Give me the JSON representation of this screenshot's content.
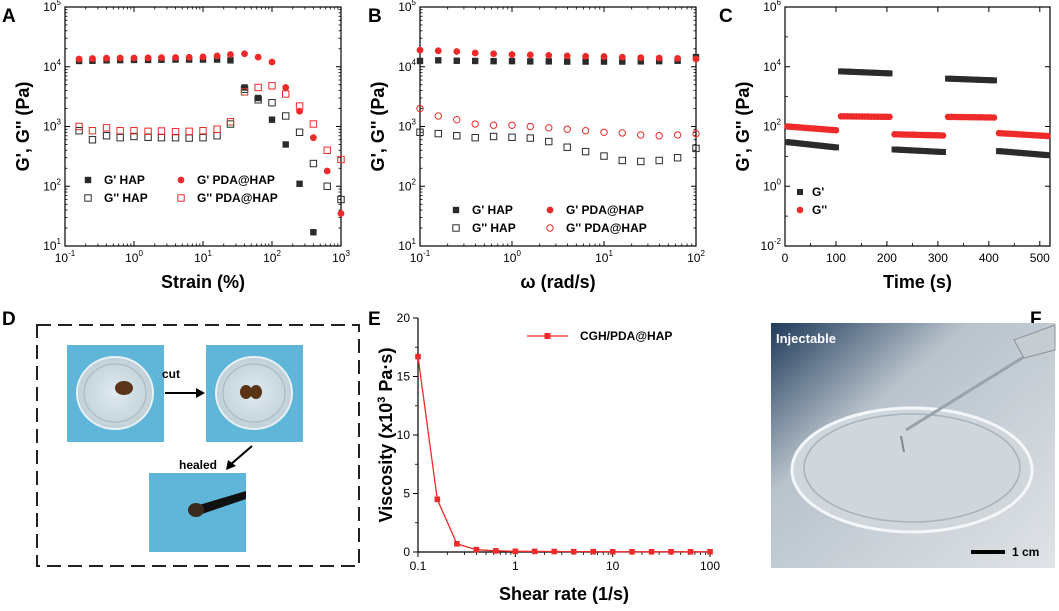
{
  "figure": {
    "panel_labels": [
      "A",
      "B",
      "C",
      "D",
      "E",
      "F"
    ]
  },
  "colors": {
    "hap": "#2b2b2b",
    "pda": "#ee2a2a",
    "photo_bg": "#5fb6d9",
    "dish_bg": "#d8dde2"
  },
  "chart_data": [
    {
      "panel": "A",
      "type": "scatter",
      "xscale": "log",
      "yscale": "log",
      "xlim": [
        0.1,
        1000
      ],
      "ylim": [
        10,
        100000
      ],
      "xlabel": "Strain (%)",
      "ylabel": "G', G'' (Pa)",
      "xticks": [
        {
          "base": "10",
          "exp": "-1"
        },
        {
          "base": "10",
          "exp": "0"
        },
        {
          "base": "10",
          "exp": "1"
        },
        {
          "base": "10",
          "exp": "2"
        },
        {
          "base": "10",
          "exp": "3"
        }
      ],
      "yticks": [
        {
          "base": "10",
          "exp": "1"
        },
        {
          "base": "10",
          "exp": "2"
        },
        {
          "base": "10",
          "exp": "3"
        },
        {
          "base": "10",
          "exp": "4"
        },
        {
          "base": "10",
          "exp": "5"
        }
      ],
      "legend": [
        "G'  HAP",
        "G''  HAP",
        "G'  PDA@HAP",
        "G''  PDA@HAP"
      ],
      "series": [
        {
          "name": "G' HAP",
          "style": "filled-square",
          "color": "hap",
          "x": [
            0.16,
            0.25,
            0.4,
            0.63,
            1,
            1.6,
            2.5,
            4,
            6.3,
            10,
            16,
            25,
            40,
            63,
            100,
            158,
            251,
            398
          ],
          "y": [
            12500,
            12600,
            12800,
            12900,
            13000,
            13000,
            13100,
            13200,
            13200,
            13200,
            13200,
            12800,
            4500,
            3000,
            1300,
            500,
            110,
            17
          ]
        },
        {
          "name": "G'' HAP",
          "style": "open-square",
          "color": "hap",
          "x": [
            0.16,
            0.25,
            0.4,
            0.63,
            1,
            1.6,
            2.5,
            4,
            6.3,
            10,
            16,
            25,
            40,
            63,
            100,
            158,
            251,
            398,
            631,
            1000
          ],
          "y": [
            850,
            600,
            700,
            650,
            680,
            660,
            650,
            650,
            640,
            650,
            700,
            1100,
            4200,
            2800,
            2500,
            1500,
            800,
            240,
            100,
            60
          ]
        },
        {
          "name": "G' PDA@HAP",
          "style": "filled-circle",
          "color": "pda",
          "x": [
            0.16,
            0.25,
            0.4,
            0.63,
            1,
            1.6,
            2.5,
            4,
            6.3,
            10,
            16,
            25,
            40,
            63,
            100,
            158,
            251,
            398,
            631,
            1000
          ],
          "y": [
            13500,
            13700,
            13900,
            14000,
            14000,
            14100,
            14200,
            14300,
            14400,
            14600,
            15200,
            16000,
            16500,
            14500,
            12000,
            4500,
            1800,
            650,
            180,
            35
          ]
        },
        {
          "name": "G'' PDA@HAP",
          "style": "open-square",
          "color": "pda",
          "x": [
            0.16,
            0.25,
            0.4,
            0.63,
            1,
            1.6,
            2.5,
            4,
            6.3,
            10,
            16,
            25,
            40,
            63,
            100,
            158,
            251,
            398,
            631,
            1000
          ],
          "y": [
            1000,
            850,
            950,
            850,
            850,
            830,
            840,
            820,
            830,
            850,
            900,
            1200,
            3800,
            4500,
            4800,
            3500,
            2200,
            1100,
            400,
            280
          ]
        }
      ]
    },
    {
      "panel": "B",
      "type": "scatter",
      "xscale": "log",
      "yscale": "log",
      "xlim": [
        0.1,
        100
      ],
      "ylim": [
        10,
        100000
      ],
      "xlabel": "ω (rad/s)",
      "ylabel": "G', G'' (Pa)",
      "xticks": [
        {
          "base": "10",
          "exp": "-1"
        },
        {
          "base": "10",
          "exp": "0"
        },
        {
          "base": "10",
          "exp": "1"
        },
        {
          "base": "10",
          "exp": "2"
        }
      ],
      "yticks": [
        {
          "base": "10",
          "exp": "1"
        },
        {
          "base": "10",
          "exp": "2"
        },
        {
          "base": "10",
          "exp": "3"
        },
        {
          "base": "10",
          "exp": "4"
        },
        {
          "base": "10",
          "exp": "5"
        }
      ],
      "legend": [
        "G'  HAP",
        "G''  HAP",
        "G'  PDA@HAP",
        "G''  PDA@HAP"
      ],
      "series": [
        {
          "name": "G' HAP",
          "style": "filled-square",
          "color": "hap",
          "x": [
            0.1,
            0.158,
            0.251,
            0.398,
            0.631,
            1,
            1.58,
            2.51,
            3.98,
            6.31,
            10,
            15.8,
            25.1,
            39.8,
            63.1,
            100
          ],
          "y": [
            12500,
            12800,
            12600,
            12500,
            12400,
            12400,
            12300,
            12300,
            12200,
            12200,
            12200,
            12200,
            12300,
            12400,
            12600,
            14500
          ]
        },
        {
          "name": "G'' HAP",
          "style": "open-square",
          "color": "hap",
          "x": [
            0.1,
            0.158,
            0.251,
            0.398,
            0.631,
            1,
            1.58,
            2.51,
            3.98,
            6.31,
            10,
            15.8,
            25.1,
            39.8,
            63.1,
            100
          ],
          "y": [
            800,
            760,
            700,
            650,
            680,
            660,
            640,
            560,
            450,
            380,
            320,
            270,
            260,
            270,
            300,
            430
          ]
        },
        {
          "name": "G' PDA@HAP",
          "style": "filled-circle",
          "color": "pda",
          "x": [
            0.1,
            0.158,
            0.251,
            0.398,
            0.631,
            1,
            1.58,
            2.51,
            3.98,
            6.31,
            10,
            15.8,
            25.1,
            39.8,
            63.1,
            100
          ],
          "y": [
            19000,
            18500,
            18000,
            17000,
            16500,
            16000,
            15800,
            15500,
            15200,
            15000,
            14800,
            14500,
            14200,
            14000,
            13800,
            13500
          ]
        },
        {
          "name": "G'' PDA@HAP",
          "style": "open-circle",
          "color": "pda",
          "x": [
            0.1,
            0.158,
            0.251,
            0.398,
            0.631,
            1,
            1.58,
            2.51,
            3.98,
            6.31,
            10,
            15.8,
            25.1,
            39.8,
            63.1,
            100
          ],
          "y": [
            2000,
            1500,
            1300,
            1100,
            1050,
            1050,
            1000,
            950,
            900,
            850,
            800,
            780,
            720,
            700,
            720,
            760
          ]
        }
      ]
    },
    {
      "panel": "C",
      "type": "scatter",
      "xscale": "linear",
      "yscale": "log",
      "xlim": [
        0,
        520
      ],
      "ylim": [
        0.01,
        1000000
      ],
      "xlabel": "Time (s)",
      "ylabel": "G', G'' (Pa)",
      "xticks": [
        {
          "base": "0",
          "exp": ""
        },
        {
          "base": "100",
          "exp": ""
        },
        {
          "base": "200",
          "exp": ""
        },
        {
          "base": "300",
          "exp": ""
        },
        {
          "base": "400",
          "exp": ""
        },
        {
          "base": "500",
          "exp": ""
        }
      ],
      "yticks": [
        {
          "base": "10",
          "exp": "-2"
        },
        {
          "base": "10",
          "exp": "0"
        },
        {
          "base": "10",
          "exp": "2"
        },
        {
          "base": "10",
          "exp": "4"
        },
        {
          "base": "10",
          "exp": "6"
        }
      ],
      "legend": [
        "G'",
        "G''"
      ],
      "segments": [
        {
          "t0": 5,
          "t1": 100,
          "g1": [
            30,
            20
          ],
          "g2": [
            100,
            75
          ]
        },
        {
          "t0": 110,
          "t1": 205,
          "g1": [
            7000,
            6000
          ],
          "g2": [
            220,
            210
          ]
        },
        {
          "t0": 215,
          "t1": 310,
          "g1": [
            17,
            14
          ],
          "g2": [
            55,
            50
          ]
        },
        {
          "t0": 320,
          "t1": 410,
          "g1": [
            4000,
            3500
          ],
          "g2": [
            210,
            200
          ]
        },
        {
          "t0": 420,
          "t1": 515,
          "g1": [
            15,
            11
          ],
          "g2": [
            60,
            48
          ]
        }
      ]
    },
    {
      "panel": "E",
      "type": "line",
      "xscale": "log",
      "yscale": "linear",
      "xlim": [
        0.1,
        100
      ],
      "ylim": [
        0,
        20
      ],
      "xlabel": "Shear rate (1/s)",
      "ylabel_pre": "Viscosity (x10",
      "ylabel_sup": "3",
      "ylabel_post": " Pa·s)",
      "xticks": [
        "0.1",
        "1",
        "10",
        "100"
      ],
      "yticks": [
        "0",
        "5",
        "10",
        "15",
        "20"
      ],
      "legend": [
        "CGH/PDA@HAP"
      ],
      "x": [
        0.1,
        0.158,
        0.251,
        0.398,
        0.631,
        1,
        1.58,
        2.51,
        3.98,
        6.31,
        10,
        15.8,
        25.1,
        39.8,
        63.1,
        100
      ],
      "y": [
        16.7,
        4.5,
        0.7,
        0.2,
        0.1,
        0.06,
        0.05,
        0.04,
        0.03,
        0.03,
        0.02,
        0.02,
        0.02,
        0.02,
        0.02,
        0.02
      ]
    }
  ],
  "panel_d": {
    "cut_label": "cut",
    "healed_label": "healed"
  },
  "panel_f": {
    "title": "Injectable",
    "scale_label": "1 cm"
  }
}
